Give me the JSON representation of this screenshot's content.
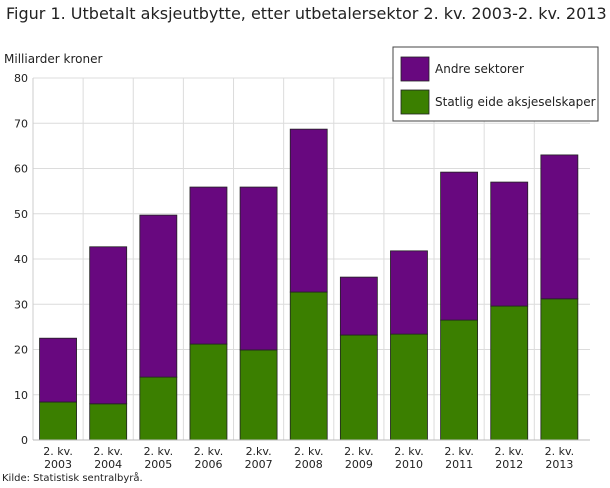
{
  "title": "Figur 1. Utbetalt aksjeutbytte, etter utbetalersektor 2. kv. 2003-2. kv. 2013",
  "source": "Kilde: Statistisk sentralbyrå.",
  "chart_data": {
    "type": "bar",
    "stacked": true,
    "title": "Figur 1. Utbetalt aksjeutbytte, etter utbetalersektor 2. kv. 2003-2. kv. 2013",
    "ylabel": "Milliarder kroner",
    "xlabel": "",
    "ylim": [
      0,
      80
    ],
    "yticks": [
      0,
      10,
      20,
      30,
      40,
      50,
      60,
      70,
      80
    ],
    "grid": true,
    "legend_position": "top-right",
    "categories": [
      [
        "2. kv.",
        "2003"
      ],
      [
        "2. kv.",
        "2004"
      ],
      [
        "2. kv.",
        "2005"
      ],
      [
        "2. kv.",
        "2006"
      ],
      [
        "2.kv.",
        "2007"
      ],
      [
        "2. kv.",
        "2008"
      ],
      [
        "2. kv.",
        "2009"
      ],
      [
        "2. kv.",
        "2010"
      ],
      [
        "2. kv.",
        "2011"
      ],
      [
        "2. kv.",
        "2012"
      ],
      [
        "2. kv.",
        "2013"
      ]
    ],
    "series": [
      {
        "name": "Statlig eide aksjeselskaper",
        "color": "#3b7f00",
        "values": [
          8.4,
          8.0,
          13.9,
          21.2,
          19.9,
          32.7,
          23.2,
          23.4,
          26.5,
          29.6,
          31.2
        ]
      },
      {
        "name": "Andre sektorer",
        "color": "#68087f",
        "values": [
          14.1,
          34.7,
          35.8,
          34.7,
          36.0,
          36.0,
          12.8,
          18.4,
          32.7,
          27.4,
          31.8
        ]
      }
    ],
    "legend_order": [
      "Andre sektorer",
      "Statlig eide aksjeselskaper"
    ]
  }
}
